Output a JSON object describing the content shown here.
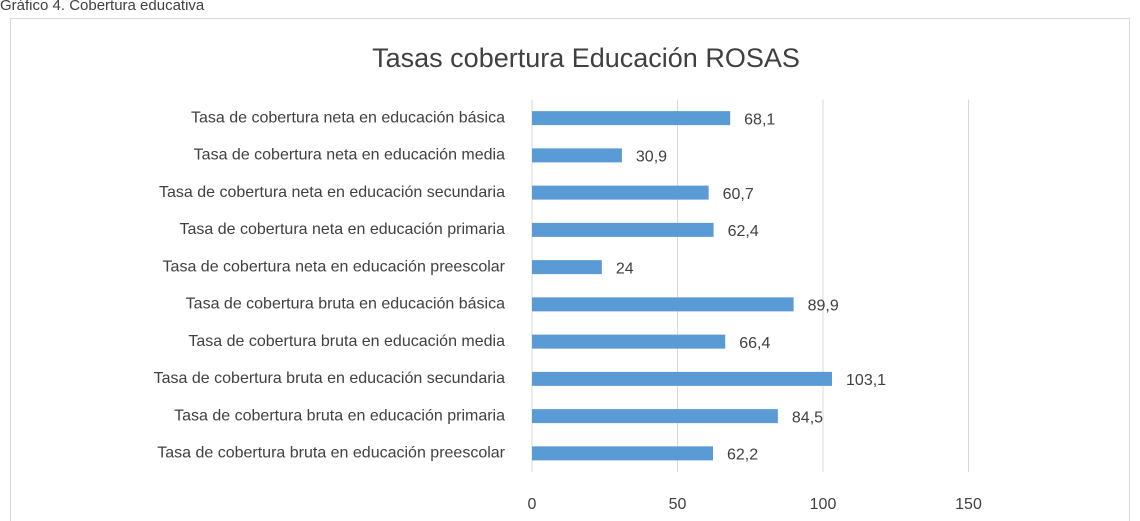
{
  "chart_data": {
    "type": "bar",
    "orientation": "horizontal",
    "caption": "Gráfico 4. Cobertura educativa",
    "title": "Tasas cobertura Educación ROSAS",
    "categories": [
      "Tasa de cobertura neta en educación básica",
      "Tasa de cobertura neta en educación media",
      "Tasa de cobertura neta en educación secundaria",
      "Tasa de cobertura neta en educación primaria",
      "Tasa de cobertura neta en educación preescolar",
      "Tasa de cobertura bruta en educación básica",
      "Tasa de cobertura bruta en educación media",
      "Tasa de cobertura bruta en educación secundaria",
      "Tasa de cobertura bruta en educación primaria",
      "Tasa de cobertura bruta en educación preescolar"
    ],
    "values": [
      68.1,
      30.9,
      60.7,
      62.4,
      24,
      89.9,
      66.4,
      103.1,
      84.5,
      62.2
    ],
    "value_labels": [
      "68,1",
      "30,9",
      "60,7",
      "62,4",
      "24",
      "89,9",
      "66,4",
      "103,1",
      "84,5",
      "62,2"
    ],
    "color": "#5b9bd5",
    "xlim": [
      0,
      200
    ],
    "xticks": [
      0,
      50,
      100,
      150
    ],
    "grid": true
  }
}
